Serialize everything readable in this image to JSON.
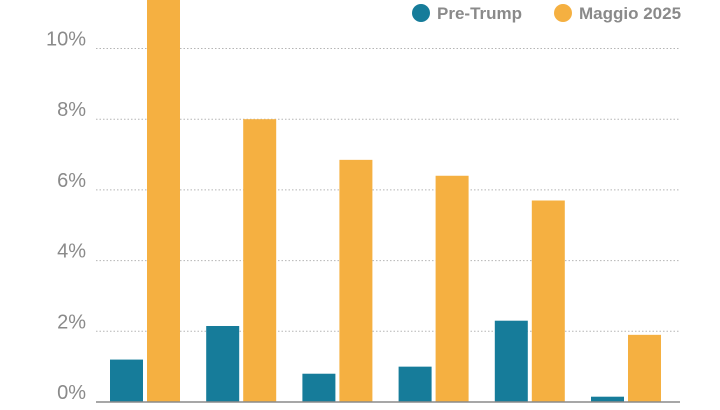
{
  "chart_data": {
    "type": "bar",
    "categories": [
      "",
      "",
      "",
      "",
      "",
      ""
    ],
    "series": [
      {
        "name": "Pre-Trump",
        "color": "#167c9a",
        "values": [
          1.2,
          2.15,
          0.8,
          1.0,
          2.3,
          0.15
        ]
      },
      {
        "name": "Maggio 2025",
        "color": "#f5b041",
        "values": [
          11.4,
          8.0,
          6.85,
          6.4,
          5.7,
          1.9
        ]
      }
    ],
    "y_ticks": [
      "0%",
      "2%",
      "4%",
      "6%",
      "8%",
      "10%"
    ],
    "y_tick_values": [
      0,
      2,
      4,
      6,
      8,
      10
    ],
    "ylim": [
      0,
      11.4
    ],
    "grid": true,
    "legend_position": "top-right",
    "title": "",
    "xlabel": "",
    "ylabel": ""
  }
}
